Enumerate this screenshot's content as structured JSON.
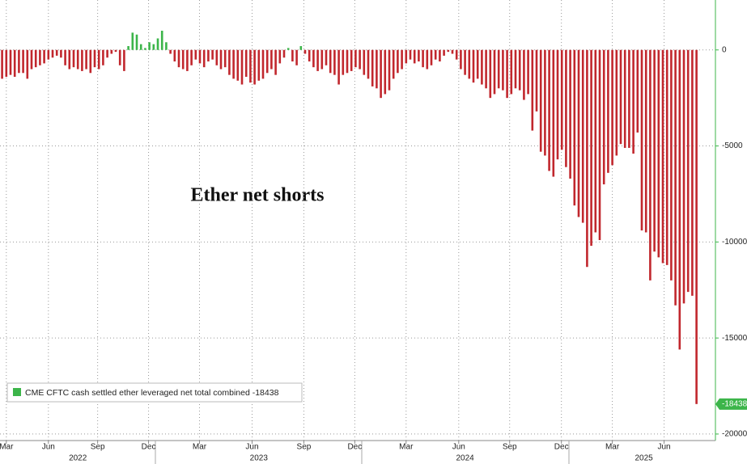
{
  "chart_data": {
    "type": "bar",
    "annotation": "Ether net shorts",
    "series": [
      {
        "name": "CME CFTC cash settled ether leveraged net total combined -18438",
        "color": "#3cb54a",
        "negative_color": "#c1272d",
        "values": [
          -1500,
          -1400,
          -1300,
          -1400,
          -1200,
          -1200,
          -1500,
          -1000,
          -900,
          -800,
          -700,
          -500,
          -400,
          -300,
          -400,
          -800,
          -1000,
          -900,
          -1000,
          -1100,
          -1000,
          -1200,
          -900,
          -1000,
          -800,
          -400,
          -200,
          -100,
          -800,
          -1100,
          200,
          900,
          800,
          300,
          100,
          400,
          300,
          600,
          1000,
          400,
          -200,
          -600,
          -900,
          -1000,
          -1100,
          -800,
          -500,
          -700,
          -900,
          -600,
          -500,
          -800,
          -1000,
          -900,
          -1300,
          -1500,
          -1600,
          -1800,
          -1400,
          -1700,
          -1800,
          -1600,
          -1500,
          -1200,
          -1000,
          -1300,
          -700,
          -400,
          100,
          -600,
          -800,
          200,
          -200,
          -600,
          -900,
          -1100,
          -1000,
          -800,
          -1200,
          -1300,
          -1800,
          -1300,
          -1200,
          -1100,
          -900,
          -1000,
          -1300,
          -1500,
          -1900,
          -2000,
          -2500,
          -2300,
          -2100,
          -1500,
          -1200,
          -1000,
          -700,
          -500,
          -700,
          -600,
          -900,
          -1000,
          -800,
          -500,
          -600,
          -300,
          -100,
          -200,
          -500,
          -1000,
          -1300,
          -1500,
          -1700,
          -1500,
          -1800,
          -2000,
          -2500,
          -2300,
          -2000,
          -2100,
          -2500,
          -2300,
          -2000,
          -2100,
          -2600,
          -2300,
          -4200,
          -3200,
          -5300,
          -5500,
          -6300,
          -6600,
          -5700,
          -5200,
          -6100,
          -6700,
          -8100,
          -8700,
          -9000,
          -11300,
          -10200,
          -9500,
          -9900,
          -7000,
          -6400,
          -6000,
          -5500,
          -4900,
          -5100,
          -5100,
          -5400,
          -4300,
          -9400,
          -9500,
          -12000,
          -10500,
          -10800,
          -11100,
          -11200,
          -12000,
          -13300,
          -15600,
          -13200,
          -12600,
          -12800,
          -18438
        ]
      }
    ],
    "xlim": [
      -0.5,
      169.5
    ],
    "xticks": [
      {
        "value": 1,
        "label": "Mar"
      },
      {
        "value": 11,
        "label": "Jun"
      },
      {
        "value": 22.7,
        "label": "Sep"
      },
      {
        "value": 34.8,
        "label": "Dec"
      },
      {
        "value": 46.9,
        "label": "Mar"
      },
      {
        "value": 59.4,
        "label": "Jun"
      },
      {
        "value": 71.7,
        "label": "Sep"
      },
      {
        "value": 83.8,
        "label": "Dec"
      },
      {
        "value": 96,
        "label": "Mar"
      },
      {
        "value": 108.5,
        "label": "Jun"
      },
      {
        "value": 120.6,
        "label": "Sep"
      },
      {
        "value": 132.9,
        "label": "Dec"
      },
      {
        "value": 145,
        "label": "Mar"
      },
      {
        "value": 157.3,
        "label": "Jun"
      }
    ],
    "year_labels": [
      {
        "value": 18,
        "label": "2022"
      },
      {
        "value": 61,
        "label": "2023"
      },
      {
        "value": 110,
        "label": "2024"
      },
      {
        "value": 152.5,
        "label": "2025"
      }
    ],
    "ylim": [
      -20340,
      2600
    ],
    "yticks": [
      0,
      -5000,
      -10000,
      -15000,
      -20000
    ],
    "grid": true
  }
}
